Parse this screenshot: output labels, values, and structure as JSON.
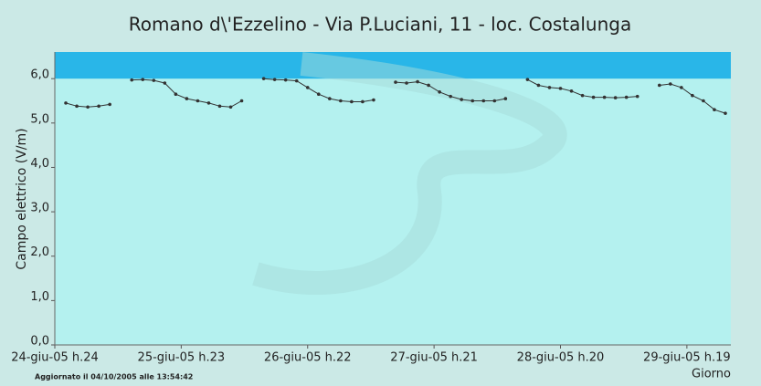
{
  "chart_data": {
    "type": "line",
    "title": "Romano d\\'Ezzelino - Via P.Luciani, 11 - loc. Costalunga",
    "y_label": "Campo elettrico (V/m)",
    "x_label": "Giorno",
    "footer": "Aggiornato il 04/10/2005 alle 13:54:42",
    "x": [
      2,
      4,
      6,
      8,
      10,
      12,
      14,
      16,
      18,
      20,
      22,
      24,
      26,
      28,
      30,
      32,
      34,
      36,
      38,
      40,
      42,
      44,
      46,
      48,
      50,
      52,
      54,
      56,
      58,
      60,
      62,
      64,
      66,
      68,
      70,
      72,
      74,
      76,
      78,
      80,
      82,
      84,
      86,
      88,
      90,
      92,
      94,
      96,
      98,
      100,
      102,
      104,
      106,
      108,
      110,
      112,
      114,
      116,
      118,
      120,
      122
    ],
    "series": [
      {
        "color": "#333333",
        "values": [
          5.45,
          5.38,
          5.36,
          5.38,
          5.42,
          null,
          5.97,
          5.98,
          5.96,
          5.9,
          5.65,
          5.55,
          5.5,
          5.45,
          5.38,
          5.36,
          5.5,
          null,
          6.0,
          5.98,
          5.97,
          5.95,
          5.8,
          5.65,
          5.55,
          5.5,
          5.48,
          5.48,
          5.52,
          null,
          5.92,
          5.9,
          5.93,
          5.85,
          5.7,
          5.6,
          5.53,
          5.5,
          5.5,
          5.5,
          5.55,
          null,
          5.98,
          5.85,
          5.8,
          5.78,
          5.72,
          5.62,
          5.58,
          5.58,
          5.57,
          5.58,
          5.6,
          null,
          5.85,
          5.88,
          5.8,
          5.62,
          5.5,
          5.3,
          5.22
        ]
      }
    ],
    "xlim": [
      0,
      123
    ],
    "xticks": [
      {
        "value": 0,
        "label": "24-giu-05 h.24"
      },
      {
        "value": 23,
        "label": "25-giu-05 h.23"
      },
      {
        "value": 46,
        "label": "26-giu-05 h.22"
      },
      {
        "value": 69,
        "label": "27-giu-05 h.21"
      },
      {
        "value": 92,
        "label": "28-giu-05 h.20"
      },
      {
        "value": 115,
        "label": "29-giu-05 h.19"
      }
    ],
    "ylim": [
      0,
      6.6
    ],
    "yticks": [
      {
        "value": 0,
        "label": "0,0"
      },
      {
        "value": 1,
        "label": "1,0"
      },
      {
        "value": 2,
        "label": "2,0"
      },
      {
        "value": 3,
        "label": "3,0"
      },
      {
        "value": 4,
        "label": "4,0"
      },
      {
        "value": 5,
        "label": "5,0"
      },
      {
        "value": 6,
        "label": "6,0"
      }
    ],
    "threshold": 6,
    "plot_color": "#b4f1ef",
    "band_color": "#29b6e8"
  }
}
